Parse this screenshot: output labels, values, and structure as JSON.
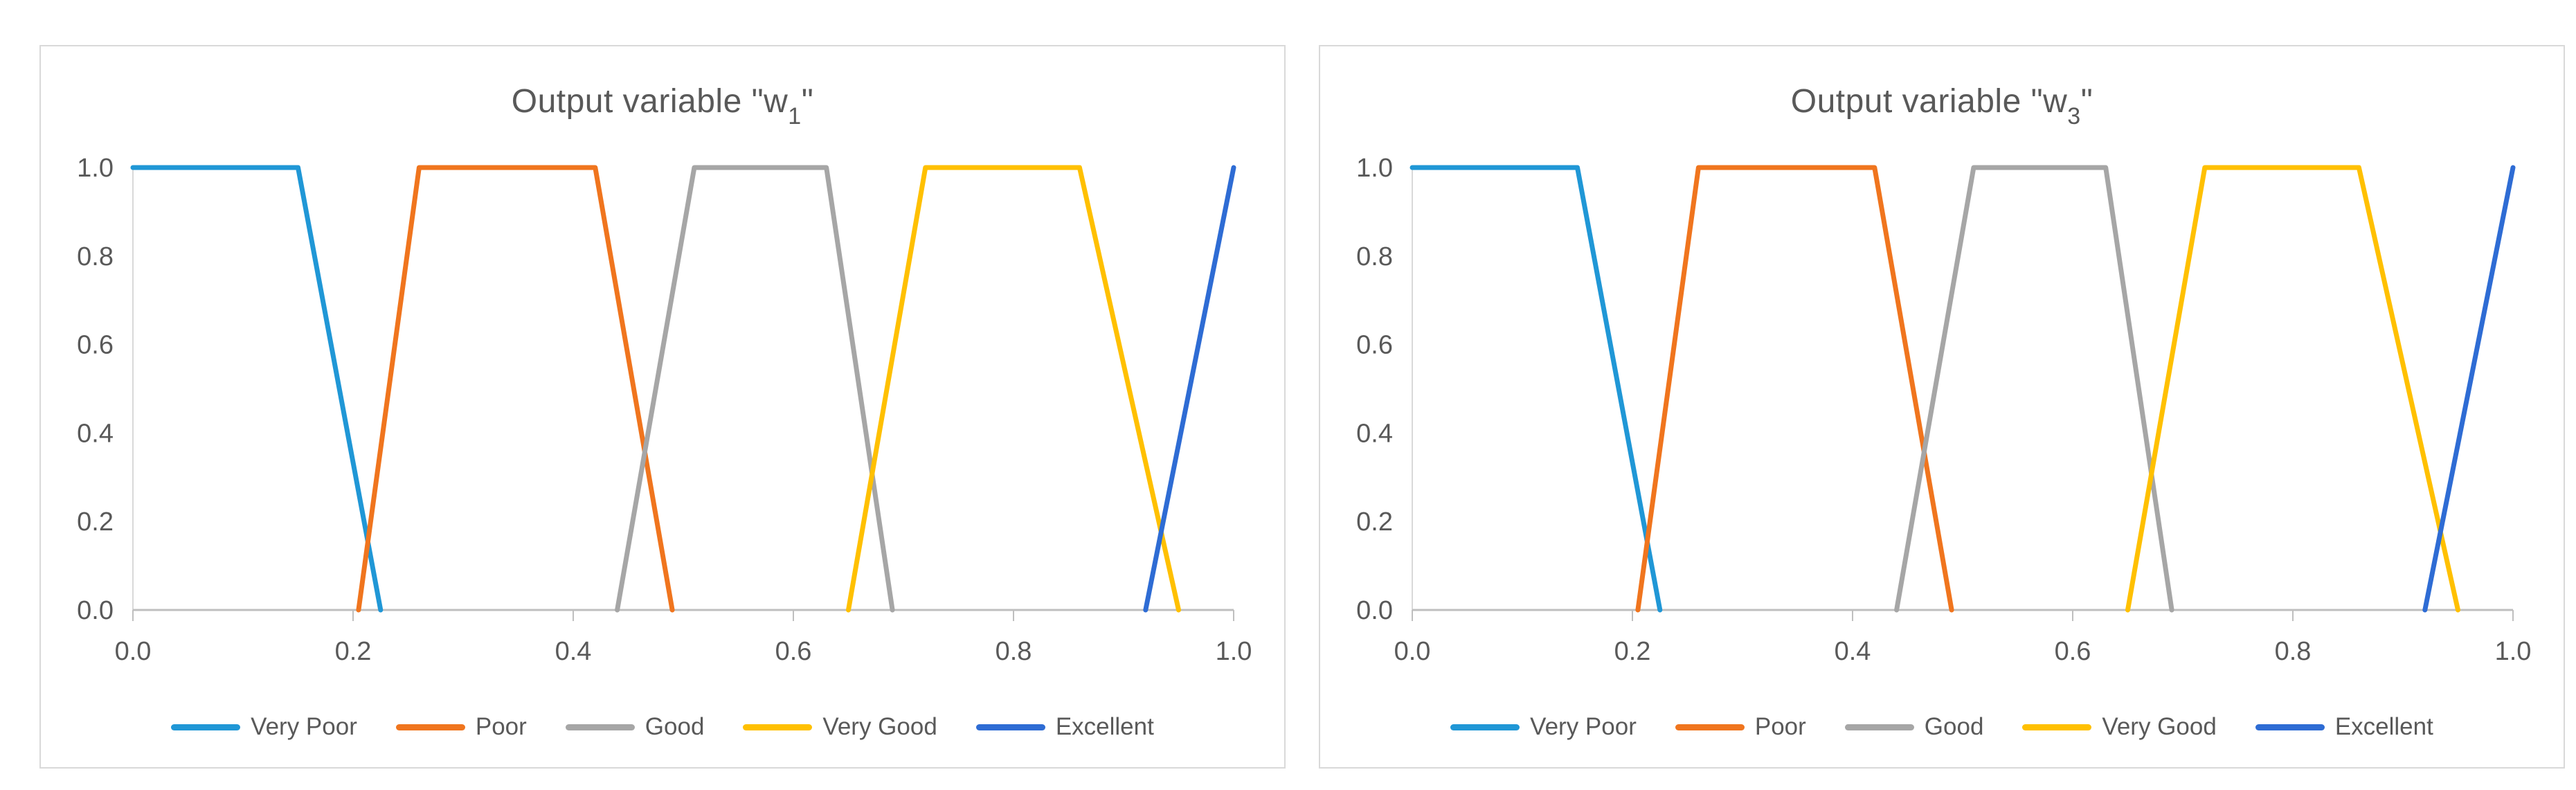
{
  "page": {
    "background": "#ffffff",
    "panel_border_color": "#d9d9d9",
    "text_color": "#595959",
    "axis_line_color": "#bfbfbf",
    "y_axis_line_color": "#d9d9d9"
  },
  "chart_data": [
    {
      "type": "line",
      "title": "Output variable \"w1\"",
      "title_parts": {
        "prefix": "Output variable \"w",
        "subscript": "1",
        "suffix": "\""
      },
      "xlabel": "",
      "ylabel": "",
      "xlim": [
        0.0,
        1.0
      ],
      "ylim": [
        0.0,
        1.0
      ],
      "x_ticks": [
        "0.0",
        "0.2",
        "0.4",
        "0.6",
        "0.8",
        "1.0"
      ],
      "y_ticks": [
        "0.0",
        "0.2",
        "0.4",
        "0.6",
        "0.8",
        "1.0"
      ],
      "grid": false,
      "legend_position": "bottom",
      "series": [
        {
          "name": "Very Poor",
          "color": "#2097d6",
          "points": [
            [
              0.0,
              1.0
            ],
            [
              0.15,
              1.0
            ],
            [
              0.225,
              0.0
            ]
          ]
        },
        {
          "name": "Poor",
          "color": "#f0751e",
          "points": [
            [
              0.205,
              0.0
            ],
            [
              0.26,
              1.0
            ],
            [
              0.42,
              1.0
            ],
            [
              0.49,
              0.0
            ]
          ]
        },
        {
          "name": "Good",
          "color": "#a6a6a6",
          "points": [
            [
              0.44,
              0.0
            ],
            [
              0.51,
              1.0
            ],
            [
              0.63,
              1.0
            ],
            [
              0.69,
              0.0
            ]
          ]
        },
        {
          "name": "Very Good",
          "color": "#ffc000",
          "points": [
            [
              0.65,
              0.0
            ],
            [
              0.72,
              1.0
            ],
            [
              0.86,
              1.0
            ],
            [
              0.95,
              0.0
            ]
          ]
        },
        {
          "name": "Excellent",
          "color": "#2e6cd4",
          "points": [
            [
              0.92,
              0.0
            ],
            [
              1.0,
              1.0
            ]
          ]
        }
      ]
    },
    {
      "type": "line",
      "title": "Output variable \"w3\"",
      "title_parts": {
        "prefix": "Output variable \"w",
        "subscript": "3",
        "suffix": "\""
      },
      "xlabel": "",
      "ylabel": "",
      "xlim": [
        0.0,
        1.0
      ],
      "ylim": [
        0.0,
        1.0
      ],
      "x_ticks": [
        "0.0",
        "0.2",
        "0.4",
        "0.6",
        "0.8",
        "1.0"
      ],
      "y_ticks": [
        "0.0",
        "0.2",
        "0.4",
        "0.6",
        "0.8",
        "1.0"
      ],
      "grid": false,
      "legend_position": "bottom",
      "series": [
        {
          "name": "Very Poor",
          "color": "#2097d6",
          "points": [
            [
              0.0,
              1.0
            ],
            [
              0.15,
              1.0
            ],
            [
              0.225,
              0.0
            ]
          ]
        },
        {
          "name": "Poor",
          "color": "#f0751e",
          "points": [
            [
              0.205,
              0.0
            ],
            [
              0.26,
              1.0
            ],
            [
              0.42,
              1.0
            ],
            [
              0.49,
              0.0
            ]
          ]
        },
        {
          "name": "Good",
          "color": "#a6a6a6",
          "points": [
            [
              0.44,
              0.0
            ],
            [
              0.51,
              1.0
            ],
            [
              0.63,
              1.0
            ],
            [
              0.69,
              0.0
            ]
          ]
        },
        {
          "name": "Very Good",
          "color": "#ffc000",
          "points": [
            [
              0.65,
              0.0
            ],
            [
              0.72,
              1.0
            ],
            [
              0.86,
              1.0
            ],
            [
              0.95,
              0.0
            ]
          ]
        },
        {
          "name": "Excellent",
          "color": "#2e6cd4",
          "points": [
            [
              0.92,
              0.0
            ],
            [
              1.0,
              1.0
            ]
          ]
        }
      ]
    }
  ]
}
